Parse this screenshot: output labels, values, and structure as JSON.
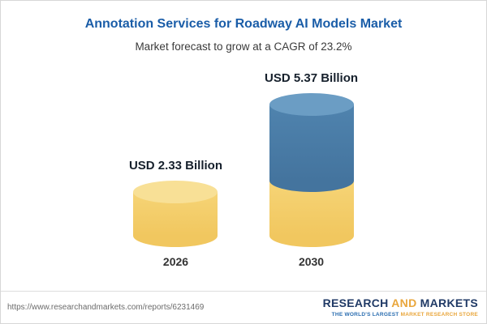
{
  "header": {
    "title": "Annotation Services for Roadway AI Models Market",
    "subtitle": "Market forecast to grow at a CAGR of 23.2%"
  },
  "chart_data": {
    "type": "bar",
    "variant": "stacked-cylinder-column",
    "title": "Annotation Services for Roadway AI Models Market",
    "subtitle": "Market forecast to grow at a CAGR of 23.2%",
    "categories": [
      "2026",
      "2030"
    ],
    "values": [
      2.33,
      5.37
    ],
    "value_labels": [
      "USD 2.33 Billion",
      "USD 5.37 Billion"
    ],
    "unit": "USD Billion",
    "cagr_pct": 23.2,
    "xlabel": "",
    "ylabel": "",
    "legend": "none",
    "grid": false,
    "colors": {
      "bar_2026": "#F4CF6D",
      "bar_2030_base": "#F4CF6D",
      "bar_2030_growth": "#4C7FA9",
      "title_text": "#1A5DA8"
    }
  },
  "footer": {
    "url": "https://www.researchandmarkets.com/reports/6231469",
    "logo": {
      "word1": "RESEARCH ",
      "word2": "AND",
      "word3": " MARKETS",
      "tagline_part1": "THE WORLD'S LARGEST ",
      "tagline_part2": "MARKET RESEARCH STORE"
    }
  }
}
